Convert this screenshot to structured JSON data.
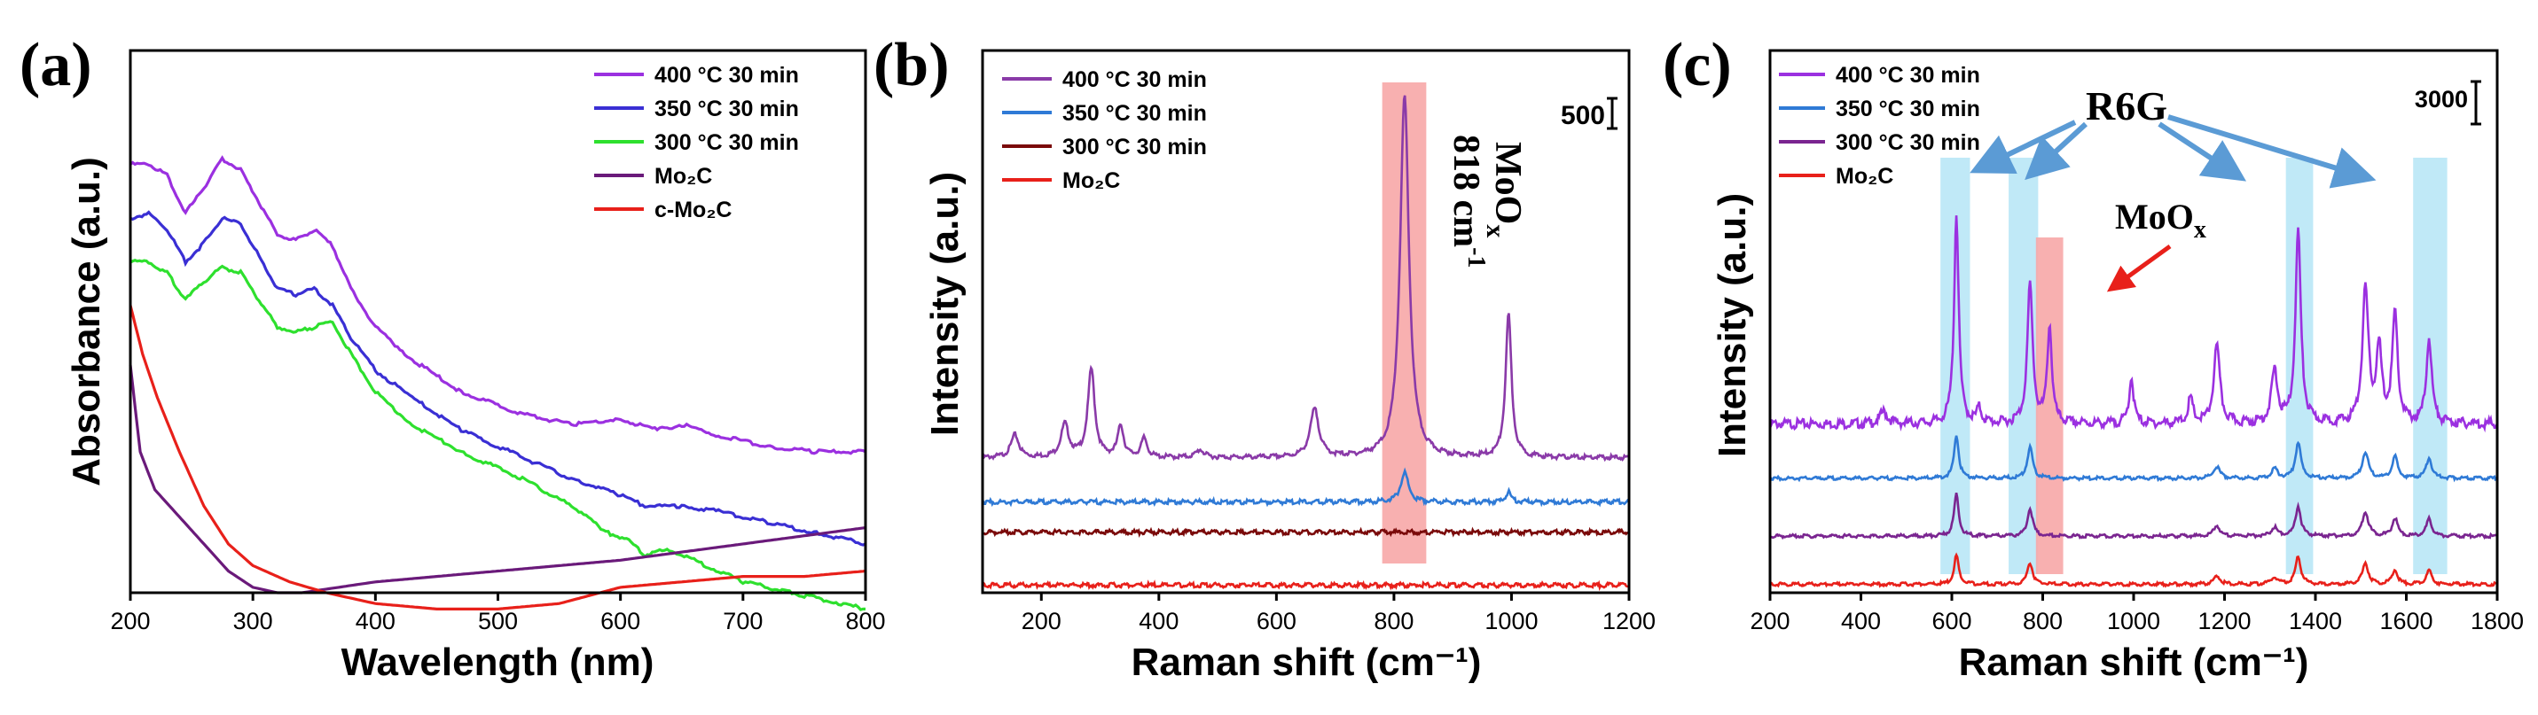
{
  "chart_data": [
    {
      "panel": "(a)",
      "type": "line",
      "xlabel": "Wavelength (nm)",
      "ylabel": "Absorbance (a.u.)",
      "xlim": [
        200,
        800
      ],
      "ylim": [
        0,
        100
      ],
      "xticks": [
        200,
        300,
        400,
        500,
        600,
        700,
        800
      ],
      "yticks_visible": false,
      "legend_position": "top-right",
      "series": [
        {
          "name": "400 °C 30 min",
          "color": "#9b30e0",
          "points": [
            [
              200,
              79
            ],
            [
              215,
              79
            ],
            [
              230,
              77
            ],
            [
              245,
              70
            ],
            [
              258,
              74
            ],
            [
              275,
              80
            ],
            [
              290,
              78
            ],
            [
              305,
              72
            ],
            [
              320,
              66
            ],
            [
              335,
              65
            ],
            [
              350,
              67
            ],
            [
              365,
              64
            ],
            [
              380,
              56
            ],
            [
              400,
              49
            ],
            [
              430,
              43
            ],
            [
              470,
              37
            ],
            [
              520,
              33
            ],
            [
              560,
              31
            ],
            [
              600,
              32
            ],
            [
              630,
              30
            ],
            [
              650,
              31
            ],
            [
              680,
              29
            ],
            [
              720,
              27
            ],
            [
              760,
              26
            ],
            [
              800,
              26
            ]
          ]
        },
        {
          "name": "350 °C 30 min",
          "color": "#3a2fd4",
          "points": [
            [
              200,
              69
            ],
            [
              215,
              70
            ],
            [
              230,
              67
            ],
            [
              245,
              61
            ],
            [
              258,
              64
            ],
            [
              275,
              69
            ],
            [
              290,
              68
            ],
            [
              305,
              62
            ],
            [
              320,
              56
            ],
            [
              335,
              55
            ],
            [
              350,
              56
            ],
            [
              365,
              53
            ],
            [
              380,
              47
            ],
            [
              400,
              41
            ],
            [
              430,
              36
            ],
            [
              470,
              30
            ],
            [
              520,
              25
            ],
            [
              560,
              21
            ],
            [
              600,
              18
            ],
            [
              620,
              16
            ],
            [
              650,
              16
            ],
            [
              680,
              15
            ],
            [
              720,
              13
            ],
            [
              760,
              11
            ],
            [
              800,
              9
            ]
          ]
        },
        {
          "name": "300 °C 30 min",
          "color": "#2ee02e",
          "points": [
            [
              200,
              61
            ],
            [
              215,
              61
            ],
            [
              230,
              59
            ],
            [
              245,
              54
            ],
            [
              258,
              57
            ],
            [
              275,
              60
            ],
            [
              290,
              59
            ],
            [
              305,
              54
            ],
            [
              320,
              49
            ],
            [
              335,
              48
            ],
            [
              350,
              49
            ],
            [
              365,
              50
            ],
            [
              380,
              44
            ],
            [
              400,
              37
            ],
            [
              430,
              31
            ],
            [
              470,
              26
            ],
            [
              520,
              21
            ],
            [
              560,
              16
            ],
            [
              590,
              11
            ],
            [
              605,
              10
            ],
            [
              620,
              7
            ],
            [
              640,
              8
            ],
            [
              660,
              6
            ],
            [
              700,
              2
            ],
            [
              740,
              0
            ],
            [
              800,
              -3
            ]
          ]
        },
        {
          "name": "Mo₂C",
          "color": "#6a1a7a",
          "points": [
            [
              200,
              42
            ],
            [
              208,
              26
            ],
            [
              220,
              19
            ],
            [
              240,
              14
            ],
            [
              260,
              9
            ],
            [
              280,
              4
            ],
            [
              300,
              1
            ],
            [
              320,
              0
            ],
            [
              340,
              0
            ],
            [
              400,
              2
            ],
            [
              500,
              4
            ],
            [
              600,
              6
            ],
            [
              700,
              9
            ],
            [
              800,
              12
            ]
          ]
        },
        {
          "name": "c-Mo₂C",
          "color": "#e8201a",
          "points": [
            [
              200,
              53
            ],
            [
              210,
              44
            ],
            [
              222,
              36
            ],
            [
              240,
              26
            ],
            [
              260,
              16
            ],
            [
              280,
              9
            ],
            [
              300,
              5
            ],
            [
              330,
              2
            ],
            [
              360,
              0
            ],
            [
              400,
              -2
            ],
            [
              450,
              -3
            ],
            [
              500,
              -3
            ],
            [
              550,
              -2
            ],
            [
              600,
              1
            ],
            [
              650,
              2
            ],
            [
              700,
              3
            ],
            [
              750,
              3
            ],
            [
              800,
              4
            ]
          ]
        }
      ]
    },
    {
      "panel": "(b)",
      "type": "line",
      "xlabel": "Raman shift (cm⁻¹)",
      "ylabel": "Intensity (a.u.)",
      "xlim": [
        100,
        1200
      ],
      "ylim": [
        0,
        4300
      ],
      "xticks": [
        200,
        400,
        600,
        800,
        1000,
        1200
      ],
      "yticks_visible": false,
      "legend_position": "top-left",
      "scale_bar": {
        "label": "500",
        "value": 500
      },
      "highlight_band": {
        "from": 780,
        "to": 855,
        "color": "#f7a7a7"
      },
      "annotations": [
        "MoOx",
        "818 cm-1"
      ],
      "series": [
        {
          "name": "400 °C 30 min",
          "color": "#8a3aa8",
          "baseline": 1070,
          "peaks": [
            [
              155,
              180,
              8
            ],
            [
              240,
              260,
              8
            ],
            [
              285,
              700,
              7
            ],
            [
              335,
              250,
              6
            ],
            [
              375,
              150,
              6
            ],
            [
              470,
              60,
              8
            ],
            [
              665,
              380,
              9
            ],
            [
              818,
              2870,
              9
            ],
            [
              995,
              1130,
              6
            ]
          ]
        },
        {
          "name": "350 °C 30 min",
          "color": "#2f7ad6",
          "baseline": 720,
          "peaks": [
            [
              818,
              230,
              8
            ],
            [
              995,
              80,
              5
            ]
          ]
        },
        {
          "name": "300 °C 30 min",
          "color": "#7a0a0a",
          "baseline": 480,
          "peaks": []
        },
        {
          "name": "Mo₂C",
          "color": "#e8201a",
          "baseline": 60,
          "peaks": []
        }
      ]
    },
    {
      "panel": "(c)",
      "type": "line",
      "xlabel": "Raman shift (cm⁻¹)",
      "ylabel": "Intensity (a.u.)",
      "xlim": [
        200,
        1800
      ],
      "ylim": [
        0,
        4500
      ],
      "xticks": [
        200,
        400,
        600,
        800,
        1000,
        1200,
        1400,
        1600,
        1800
      ],
      "yticks_visible": false,
      "legend_position": "top-left",
      "scale_bar": {
        "label": "3000",
        "value": 3000
      },
      "highlight_bands": [
        {
          "from": 575,
          "to": 640,
          "color": "#bde8f7"
        },
        {
          "from": 725,
          "to": 790,
          "color": "#bde8f7"
        },
        {
          "from": 1335,
          "to": 1395,
          "color": "#bde8f7"
        },
        {
          "from": 1615,
          "to": 1690,
          "color": "#bde8f7"
        },
        {
          "from": 785,
          "to": 845,
          "color": "#f7a7a7"
        }
      ],
      "annotations": [
        "R6G",
        "MoOx"
      ],
      "series": [
        {
          "name": "400 °C 30 min",
          "color": "#9b30e0",
          "baseline": 1400,
          "peaks": [
            [
              450,
              100,
              10
            ],
            [
              610,
              1740,
              6
            ],
            [
              660,
              120,
              6
            ],
            [
              772,
              1150,
              7
            ],
            [
              815,
              810,
              6
            ],
            [
              995,
              380,
              6
            ],
            [
              1125,
              200,
              7
            ],
            [
              1183,
              650,
              8
            ],
            [
              1310,
              430,
              8
            ],
            [
              1362,
              1600,
              7
            ],
            [
              1510,
              1100,
              8
            ],
            [
              1540,
              600,
              7
            ],
            [
              1575,
              910,
              7
            ],
            [
              1650,
              710,
              7
            ]
          ]
        },
        {
          "name": "350 °C 30 min",
          "color": "#2f7ad6",
          "baseline": 950,
          "peaks": [
            [
              610,
              360,
              6
            ],
            [
              772,
              260,
              7
            ],
            [
              1183,
              100,
              8
            ],
            [
              1310,
              80,
              8
            ],
            [
              1362,
              300,
              7
            ],
            [
              1510,
              220,
              8
            ],
            [
              1575,
              180,
              7
            ],
            [
              1650,
              170,
              7
            ]
          ]
        },
        {
          "name": "300 °C 30 min",
          "color": "#7a2590",
          "baseline": 470,
          "peaks": [
            [
              610,
              350,
              6
            ],
            [
              772,
              230,
              7
            ],
            [
              1183,
              90,
              8
            ],
            [
              1310,
              70,
              8
            ],
            [
              1362,
              250,
              7
            ],
            [
              1510,
              200,
              8
            ],
            [
              1575,
              150,
              7
            ],
            [
              1650,
              140,
              7
            ]
          ]
        },
        {
          "name": "Mo₂C",
          "color": "#e8201a",
          "baseline": 70,
          "peaks": [
            [
              610,
              240,
              6
            ],
            [
              772,
              180,
              7
            ],
            [
              1183,
              70,
              8
            ],
            [
              1310,
              60,
              8
            ],
            [
              1362,
              230,
              7
            ],
            [
              1510,
              170,
              8
            ],
            [
              1575,
              120,
              7
            ],
            [
              1650,
              110,
              7
            ]
          ]
        }
      ]
    }
  ]
}
